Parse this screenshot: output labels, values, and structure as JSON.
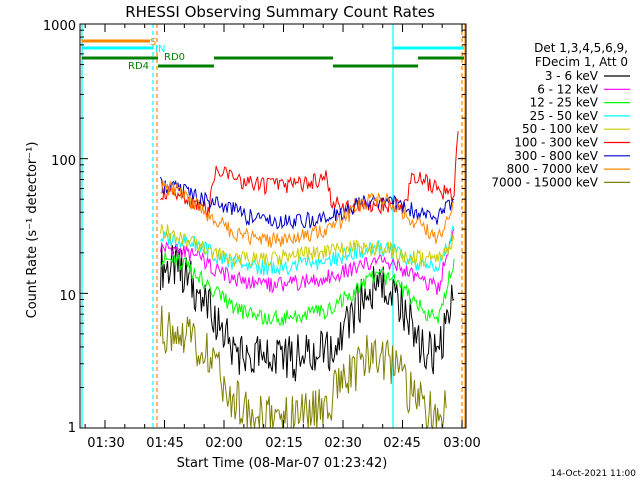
{
  "chart_data": {
    "type": "line",
    "title": "RHESSI Observing Summary Count Rates",
    "xlabel": "Start Time (08-Mar-07 01:23:42)",
    "ylabel": "Count Rate (s⁻¹ detector⁻¹)",
    "yscale": "log",
    "ylim": [
      1,
      1000
    ],
    "xlim": [
      "01:23:42",
      "03:01:00"
    ],
    "xtick_labels": [
      "01:30",
      "01:45",
      "02:00",
      "02:15",
      "02:30",
      "02:45",
      "03:00"
    ],
    "ytick_labels": [
      "1",
      "10",
      "100",
      "1000"
    ],
    "legend_header": [
      "Det 1,3,4,5,6,9,",
      "FDecim 1, Att 0"
    ],
    "legend_position": "right",
    "series": [
      {
        "name": "3 - 6 keV",
        "color": "#000000",
        "x": [
          "01:44",
          "01:49",
          "01:54",
          "01:58",
          "02:02",
          "02:06",
          "02:10",
          "02:14",
          "02:18",
          "02:22",
          "02:26",
          "02:30",
          "02:34",
          "02:38",
          "02:42",
          "02:46",
          "02:50",
          "02:54",
          "02:58"
        ],
        "y": [
          16,
          15,
          10,
          6,
          4,
          3.3,
          3.2,
          3.2,
          3.3,
          3.4,
          3.6,
          5,
          8,
          12,
          11,
          7,
          4,
          3.3,
          9
        ]
      },
      {
        "name": "6 - 12 keV",
        "color": "#ff00ff",
        "x": [
          "01:44",
          "01:49",
          "01:54",
          "01:58",
          "02:02",
          "02:06",
          "02:10",
          "02:14",
          "02:18",
          "02:22",
          "02:26",
          "02:30",
          "02:34",
          "02:38",
          "02:42",
          "02:46",
          "02:50",
          "02:54",
          "02:58"
        ],
        "y": [
          22,
          21,
          18,
          15,
          13,
          12,
          11.5,
          11.5,
          12,
          12.5,
          13,
          14.5,
          16,
          17.5,
          17,
          14.5,
          12,
          11,
          30
        ]
      },
      {
        "name": "12 - 25 keV",
        "color": "#00ff00",
        "x": [
          "01:44",
          "01:49",
          "01:54",
          "01:58",
          "02:02",
          "02:06",
          "02:10",
          "02:14",
          "02:18",
          "02:22",
          "02:26",
          "02:30",
          "02:34",
          "02:38",
          "02:42",
          "02:46",
          "02:50",
          "02:54",
          "02:58"
        ],
        "y": [
          18,
          17,
          13,
          10,
          8,
          7,
          6.5,
          6.5,
          6.7,
          7,
          7.5,
          9,
          11,
          13.5,
          13,
          10,
          7.5,
          6.5,
          18
        ]
      },
      {
        "name": "25 - 50 keV",
        "color": "#00ffff",
        "x": [
          "01:44",
          "01:49",
          "01:54",
          "01:58",
          "02:02",
          "02:06",
          "02:10",
          "02:14",
          "02:18",
          "02:22",
          "02:26",
          "02:30",
          "02:34",
          "02:38",
          "02:42",
          "02:46",
          "02:50",
          "02:54",
          "02:58"
        ],
        "y": [
          26,
          25,
          23,
          19,
          17,
          16,
          15.5,
          15.5,
          16,
          16.5,
          17,
          19,
          21,
          22,
          21,
          18,
          16,
          15.5,
          30
        ]
      },
      {
        "name": "50 - 100 keV",
        "color": "#cccc00",
        "x": [
          "01:44",
          "01:49",
          "01:54",
          "01:58",
          "02:02",
          "02:06",
          "02:10",
          "02:14",
          "02:18",
          "02:22",
          "02:26",
          "02:30",
          "02:34",
          "02:38",
          "02:42",
          "02:46",
          "02:50",
          "02:54",
          "02:58"
        ],
        "y": [
          30,
          26,
          22,
          20,
          18,
          18,
          18,
          18.5,
          19,
          19.5,
          20,
          21,
          22,
          21.5,
          21,
          19,
          18,
          18,
          25
        ]
      },
      {
        "name": "100 - 300 keV",
        "color": "#ff0000",
        "x": [
          "01:44",
          "01:49",
          "01:54",
          "01:56",
          "01:58",
          "02:02",
          "02:06",
          "02:10",
          "02:14",
          "02:18",
          "02:22",
          "02:26",
          "02:27",
          "02:30",
          "02:34",
          "02:38",
          "02:42",
          "02:46",
          "02:47",
          "02:50",
          "02:54",
          "02:58",
          "02:59"
        ],
        "y": [
          56,
          52,
          45,
          40,
          80,
          72,
          66,
          63,
          62,
          63,
          66,
          72,
          47,
          44,
          44,
          45,
          45,
          45,
          75,
          70,
          58,
          55,
          160
        ]
      },
      {
        "name": "300 - 800 keV",
        "color": "#0000cc",
        "x": [
          "01:44",
          "01:49",
          "01:54",
          "01:58",
          "02:02",
          "02:06",
          "02:10",
          "02:14",
          "02:18",
          "02:22",
          "02:26",
          "02:30",
          "02:34",
          "02:38",
          "02:42",
          "02:46",
          "02:50",
          "02:54",
          "02:58"
        ],
        "y": [
          64,
          60,
          52,
          47,
          42,
          37,
          35,
          34,
          34,
          35,
          36,
          40,
          46,
          48,
          47,
          43,
          38,
          36,
          50
        ]
      },
      {
        "name": "800 - 7000 keV",
        "color": "#ff8800",
        "x": [
          "01:44",
          "01:49",
          "01:54",
          "01:58",
          "02:02",
          "02:06",
          "02:10",
          "02:14",
          "02:18",
          "02:22",
          "02:26",
          "02:30",
          "02:34",
          "02:38",
          "02:42",
          "02:46",
          "02:50",
          "02:54",
          "02:58"
        ],
        "y": [
          62,
          58,
          42,
          34,
          29,
          26,
          25,
          25,
          26,
          27,
          29,
          35,
          44,
          50,
          48,
          38,
          30,
          26,
          48
        ]
      },
      {
        "name": "7000 - 15000 keV",
        "color": "#808000",
        "x": [
          "01:44",
          "01:48",
          "01:52",
          "01:56",
          "02:00",
          "02:04",
          "02:08",
          "02:12",
          "02:16",
          "02:20",
          "02:24",
          "02:28",
          "02:32",
          "02:36",
          "02:40",
          "02:44",
          "02:48",
          "02:52",
          "02:56"
        ],
        "y": [
          5.5,
          5.2,
          4.5,
          3.3,
          2.2,
          1.4,
          1.2,
          1.2,
          1.2,
          1.2,
          1.3,
          1.8,
          2.6,
          3.3,
          3.5,
          2.6,
          1.6,
          1.3,
          1.4
        ]
      }
    ],
    "annotations": [
      {
        "label": "S",
        "color": "#ff8800"
      },
      {
        "label": "IN",
        "color": "#00ffff"
      },
      {
        "label": "RD0",
        "color": "#008000"
      },
      {
        "label": "RD4",
        "color": "#008000"
      }
    ],
    "footer_date": "14-Oct-2021 11:00"
  }
}
